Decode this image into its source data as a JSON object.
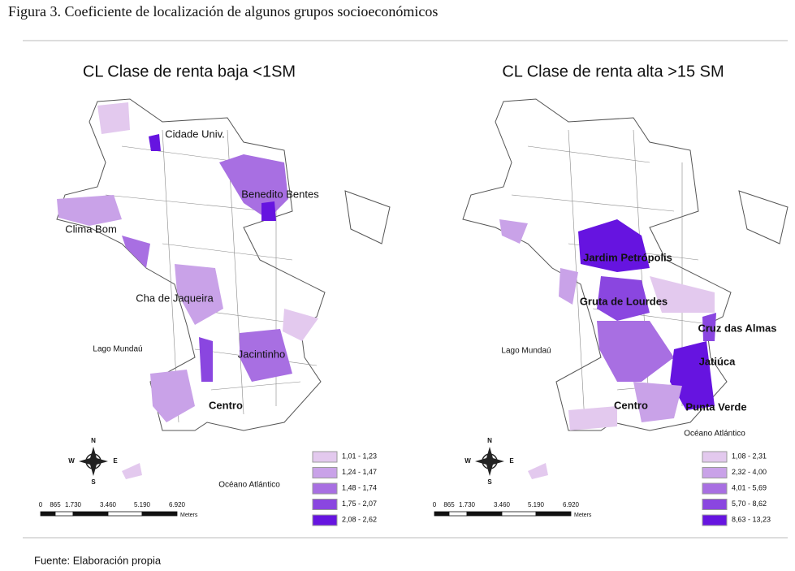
{
  "header": {
    "title": "Figura 3. Coeficiente de localización de algunos grupos socioeconómicos"
  },
  "maps": [
    {
      "title": "CL Clase de renta baja <1SM",
      "places": [
        "Cidade Univ.",
        "Benedito Bentes",
        "Clima Bom",
        "Cha de Jaqueira",
        "Jacintinho",
        "Centro",
        "Lago Mundaú",
        "Océano Atlántico"
      ],
      "legend": [
        "1,01 - 1,23",
        "1,24 - 1,47",
        "1,48 - 1,74",
        "1,75 - 2,07",
        "2,08 - 2,62"
      ],
      "compass": [
        "N",
        "S",
        "E",
        "W"
      ],
      "scale": {
        "ticks": [
          "0",
          "865",
          "1.730",
          "3.460",
          "5.190",
          "6.920"
        ],
        "unit": "Meters"
      }
    },
    {
      "title": "CL Clase de renta alta >15 SM",
      "places": [
        "Jardim Petrópolis",
        "Gruta de Lourdes",
        "Cruz das Almas",
        "Jatiúca",
        "Centro",
        "Punta Verde",
        "Lago Mundaú",
        "Océano Atlántico"
      ],
      "legend": [
        "1,08 - 2,31",
        "2,32 - 4,00",
        "4,01 - 5,69",
        "5,70 - 8,62",
        "8,63 - 13,23"
      ],
      "compass": [
        "N",
        "S",
        "E",
        "W"
      ],
      "scale": {
        "ticks": [
          "0",
          "865",
          "1.730",
          "3.460",
          "5.190",
          "6.920"
        ],
        "unit": "Meters"
      }
    }
  ],
  "footer": {
    "source": "Fuente: Elaboración propia"
  }
}
